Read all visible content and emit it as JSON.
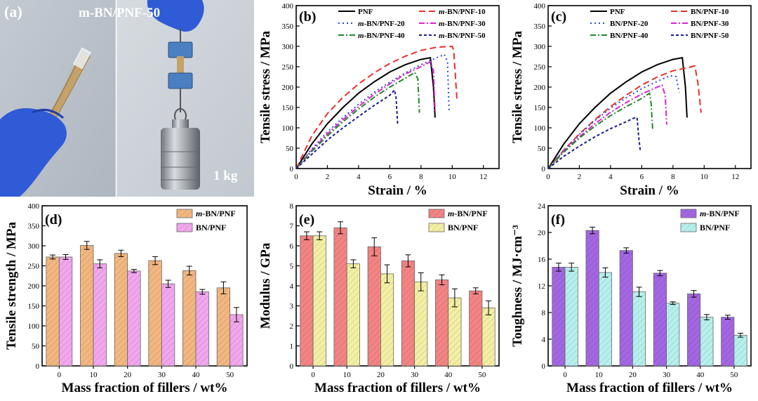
{
  "photo": {
    "panel_label": "(a)",
    "sample_label": "m-BN/PNF-50",
    "weight_label": "1 kg",
    "colors": {
      "glove": "#2f5bd6",
      "film": "#c4a26a",
      "wall": "#c9cfd6",
      "weight": "#9a9fa6",
      "clip": "#4a7fc1"
    }
  },
  "chart_data": [
    {
      "id": "b",
      "panel_label": "(b)",
      "type": "line",
      "xlabel": "Strain / %",
      "ylabel": "Tensile stress / MPa",
      "xlim": [
        0,
        13
      ],
      "ylim": [
        0,
        400
      ],
      "xticks": [
        0,
        2,
        4,
        6,
        8,
        10,
        12
      ],
      "yticks": [
        0,
        50,
        100,
        150,
        200,
        250,
        300,
        350,
        400
      ],
      "legend_placement": "top",
      "series": [
        {
          "name": "PNF",
          "color": "#000000",
          "dash": "solid",
          "points": [
            [
              0,
              0
            ],
            [
              1,
              60
            ],
            [
              2,
              110
            ],
            [
              3,
              150
            ],
            [
              4,
              185
            ],
            [
              5,
              213
            ],
            [
              6,
              237
            ],
            [
              7,
              255
            ],
            [
              8,
              268
            ],
            [
              8.6,
              272
            ],
            [
              8.8,
              200
            ],
            [
              8.9,
              125
            ]
          ]
        },
        {
          "name": "m-BN/PNF-10",
          "color": "#e8302a",
          "dash": "dash",
          "points": [
            [
              0,
              0
            ],
            [
              0.5,
              40
            ],
            [
              1,
              80
            ],
            [
              2,
              135
            ],
            [
              3,
              175
            ],
            [
              4,
              208
            ],
            [
              5,
              235
            ],
            [
              6,
              258
            ],
            [
              7,
              276
            ],
            [
              8,
              290
            ],
            [
              9,
              298
            ],
            [
              10,
              300
            ],
            [
              10.1,
              290
            ],
            [
              10.3,
              170
            ]
          ]
        },
        {
          "name": "m-BN/PNF-20",
          "color": "#2a4bd6",
          "dash": "dot",
          "points": [
            [
              0,
              0
            ],
            [
              1,
              48
            ],
            [
              2,
              90
            ],
            [
              3,
              125
            ],
            [
              4,
              158
            ],
            [
              5,
              187
            ],
            [
              6,
              212
            ],
            [
              7,
              235
            ],
            [
              8,
              255
            ],
            [
              9,
              272
            ],
            [
              9.5,
              280
            ],
            [
              9.7,
              262
            ],
            [
              9.8,
              140
            ]
          ]
        },
        {
          "name": "m-BN/PNF-30",
          "color": "#e020d0",
          "dash": "dashdot",
          "points": [
            [
              0,
              0
            ],
            [
              1,
              45
            ],
            [
              2,
              85
            ],
            [
              3,
              120
            ],
            [
              4,
              152
            ],
            [
              5,
              182
            ],
            [
              6,
              208
            ],
            [
              7,
              232
            ],
            [
              8,
              250
            ],
            [
              8.6,
              262
            ],
            [
              8.8,
              240
            ],
            [
              8.9,
              140
            ]
          ]
        },
        {
          "name": "m-BN/PNF-40",
          "color": "#1f8a2a",
          "dash": "dashdot",
          "points": [
            [
              0,
              0
            ],
            [
              1,
              42
            ],
            [
              2,
              80
            ],
            [
              3,
              115
            ],
            [
              4,
              146
            ],
            [
              5,
              175
            ],
            [
              6,
              200
            ],
            [
              7,
              222
            ],
            [
              7.6,
              236
            ],
            [
              7.8,
              220
            ],
            [
              7.9,
              137
            ]
          ]
        },
        {
          "name": "m-BN/PNF-50",
          "color": "#1a1a8c",
          "dash": "shortdash",
          "points": [
            [
              0,
              0
            ],
            [
              1,
              35
            ],
            [
              2,
              70
            ],
            [
              3,
              100
            ],
            [
              4,
              128
            ],
            [
              5,
              155
            ],
            [
              6,
              180
            ],
            [
              6.3,
              193
            ],
            [
              6.4,
              175
            ],
            [
              6.5,
              110
            ]
          ]
        }
      ]
    },
    {
      "id": "c",
      "panel_label": "(c)",
      "type": "line",
      "xlabel": "Strain / %",
      "ylabel": "Tensile stress / MPa",
      "xlim": [
        0,
        13
      ],
      "ylim": [
        0,
        400
      ],
      "xticks": [
        0,
        2,
        4,
        6,
        8,
        10,
        12
      ],
      "yticks": [
        0,
        50,
        100,
        150,
        200,
        250,
        300,
        350,
        400
      ],
      "legend_placement": "top",
      "series": [
        {
          "name": "PNF",
          "color": "#000000",
          "dash": "solid",
          "points": [
            [
              0,
              0
            ],
            [
              1,
              60
            ],
            [
              2,
              110
            ],
            [
              3,
              150
            ],
            [
              4,
              185
            ],
            [
              5,
              213
            ],
            [
              6,
              237
            ],
            [
              7,
              255
            ],
            [
              8,
              268
            ],
            [
              8.6,
              272
            ],
            [
              8.8,
              200
            ],
            [
              8.9,
              125
            ]
          ]
        },
        {
          "name": "BN/PNF-10",
          "color": "#e8302a",
          "dash": "dash",
          "points": [
            [
              0,
              0
            ],
            [
              1,
              45
            ],
            [
              2,
              85
            ],
            [
              3,
              120
            ],
            [
              4,
              152
            ],
            [
              5,
              180
            ],
            [
              6,
              205
            ],
            [
              7,
              225
            ],
            [
              8,
              240
            ],
            [
              9,
              248
            ],
            [
              9.4,
              252
            ],
            [
              9.6,
              210
            ],
            [
              9.8,
              137
            ]
          ]
        },
        {
          "name": "BN/PNF-20",
          "color": "#2a4bd6",
          "dash": "dot",
          "points": [
            [
              0,
              0
            ],
            [
              1,
              45
            ],
            [
              2,
              84
            ],
            [
              3,
              118
            ],
            [
              4,
              148
            ],
            [
              5,
              174
            ],
            [
              6,
              196
            ],
            [
              7,
              214
            ],
            [
              7.8,
              228
            ],
            [
              8.2,
              226
            ],
            [
              8.4,
              187
            ]
          ]
        },
        {
          "name": "BN/PNF-30",
          "color": "#e020d0",
          "dash": "dashdot",
          "points": [
            [
              0,
              0
            ],
            [
              1,
              42
            ],
            [
              2,
              78
            ],
            [
              3,
              110
            ],
            [
              4,
              138
            ],
            [
              5,
              162
            ],
            [
              6,
              183
            ],
            [
              7,
              200
            ],
            [
              7.3,
              205
            ],
            [
              7.5,
              180
            ],
            [
              7.6,
              108
            ]
          ]
        },
        {
          "name": "BN/PNF-40",
          "color": "#1f8a2a",
          "dash": "dashdot",
          "points": [
            [
              0,
              0
            ],
            [
              1,
              40
            ],
            [
              2,
              75
            ],
            [
              3,
              104
            ],
            [
              4,
              130
            ],
            [
              5,
              152
            ],
            [
              6,
              172
            ],
            [
              6.5,
              185
            ],
            [
              6.6,
              160
            ],
            [
              6.7,
              97
            ]
          ]
        },
        {
          "name": "BN/PNF-50",
          "color": "#1a1a8c",
          "dash": "shortdash",
          "points": [
            [
              0,
              0
            ],
            [
              1,
              30
            ],
            [
              2,
              55
            ],
            [
              3,
              78
            ],
            [
              4,
              98
            ],
            [
              5,
              115
            ],
            [
              5.5,
              124
            ],
            [
              5.7,
              125
            ],
            [
              5.8,
              80
            ],
            [
              5.9,
              45
            ]
          ]
        }
      ]
    },
    {
      "id": "d",
      "panel_label": "(d)",
      "type": "bar",
      "xlabel": "Mass fraction of fillers / wt%",
      "ylabel": "Tensile strength / MPa",
      "categories": [
        "0",
        "10",
        "20",
        "30",
        "40",
        "50"
      ],
      "ylim": [
        0,
        400
      ],
      "yticks": [
        0,
        50,
        100,
        150,
        200,
        250,
        300,
        350,
        400
      ],
      "legend_placement": "top-right",
      "series": [
        {
          "name": "m-BN/PNF",
          "color": "#f3b780",
          "values": [
            272,
            301,
            281,
            263,
            238,
            195
          ],
          "errors": [
            5,
            10,
            8,
            10,
            11,
            15
          ]
        },
        {
          "name": "BN/PNF",
          "color": "#f2a7ee",
          "values": [
            272,
            255,
            237,
            205,
            185,
            128
          ],
          "errors": [
            6,
            10,
            4,
            9,
            6,
            18
          ]
        }
      ]
    },
    {
      "id": "e",
      "panel_label": "(e)",
      "type": "bar",
      "xlabel": "Mass fraction of fillers / wt%",
      "ylabel": "Modulus / GPa",
      "categories": [
        "0",
        "10",
        "20",
        "30",
        "40",
        "50"
      ],
      "ylim": [
        0,
        8
      ],
      "yticks": [
        0,
        1,
        2,
        3,
        4,
        5,
        6,
        7,
        8
      ],
      "legend_placement": "top-right",
      "series": [
        {
          "name": "m-BN/PNF",
          "color": "#f48484",
          "values": [
            6.5,
            6.9,
            5.95,
            5.25,
            4.3,
            3.75
          ],
          "errors": [
            0.2,
            0.3,
            0.45,
            0.3,
            0.25,
            0.15
          ]
        },
        {
          "name": "BN/PNF",
          "color": "#f3f0a4",
          "values": [
            6.5,
            5.1,
            4.6,
            4.2,
            3.4,
            2.9
          ],
          "errors": [
            0.2,
            0.2,
            0.45,
            0.45,
            0.45,
            0.35
          ]
        }
      ]
    },
    {
      "id": "f",
      "panel_label": "(f)",
      "type": "bar",
      "xlabel": "Mass fraction of fillers / wt%",
      "ylabel": "Toughness / MJ·cm⁻³",
      "categories": [
        "0",
        "10",
        "20",
        "30",
        "40",
        "50"
      ],
      "ylim": [
        0,
        24
      ],
      "yticks": [
        0,
        4,
        8,
        12,
        16,
        20,
        24
      ],
      "legend_placement": "top-right",
      "series": [
        {
          "name": "m-BN/PNF",
          "color": "#a467e3",
          "values": [
            14.8,
            20.3,
            17.3,
            13.9,
            10.8,
            7.3
          ],
          "errors": [
            0.6,
            0.5,
            0.4,
            0.4,
            0.5,
            0.3
          ]
        },
        {
          "name": "BN/PNF",
          "color": "#b6f0ec",
          "values": [
            14.8,
            14.0,
            11.1,
            9.4,
            7.3,
            4.6
          ],
          "errors": [
            0.6,
            0.7,
            0.7,
            0.2,
            0.4,
            0.3
          ]
        }
      ]
    }
  ]
}
